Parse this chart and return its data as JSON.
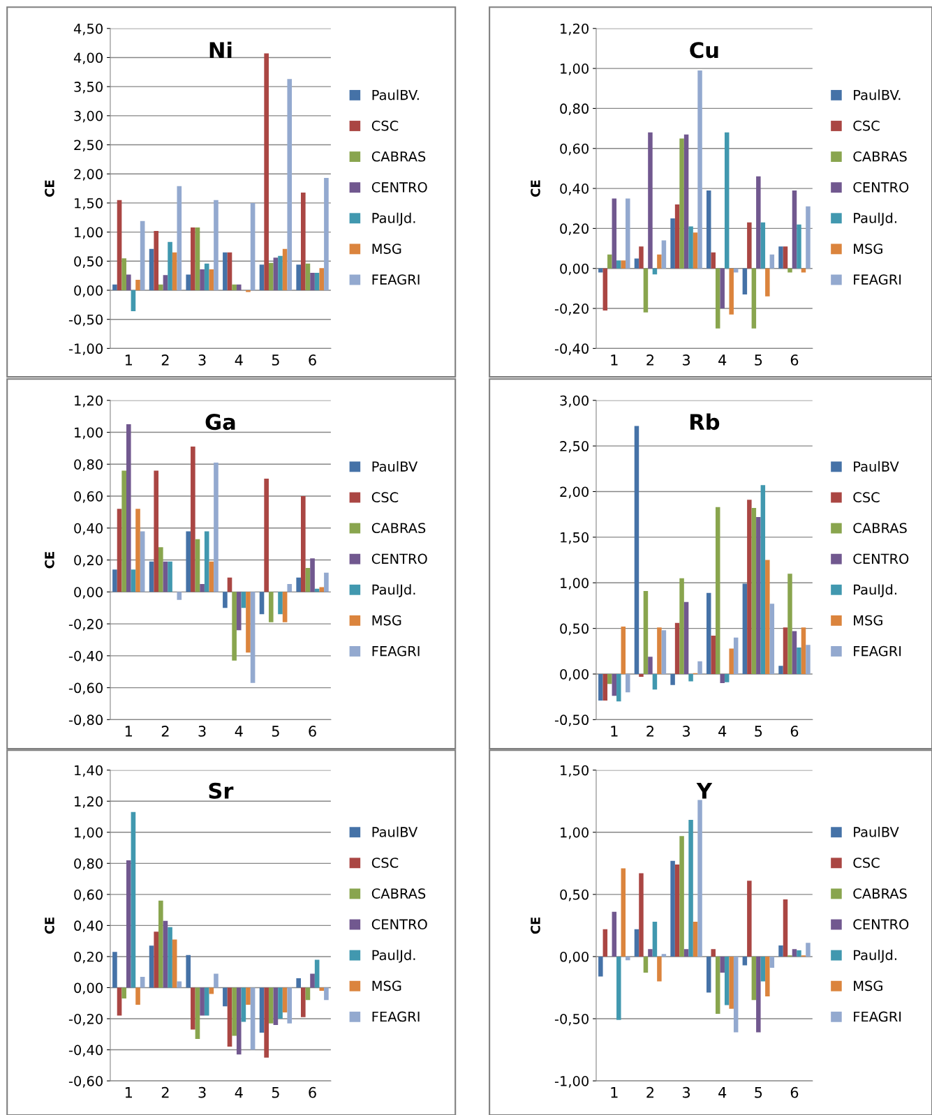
{
  "chart_data": [
    {
      "type": "bar",
      "title": "Ni",
      "ylabel": "CE",
      "categories": [
        "1",
        "2",
        "3",
        "4",
        "5",
        "6"
      ],
      "grid": "y",
      "legend": "right",
      "ylim": [
        -1.0,
        4.5
      ],
      "yticks": [
        {
          "value": -1.0,
          "label": "-1,00"
        },
        {
          "value": -0.5,
          "label": "-0,50"
        },
        {
          "value": 0.0,
          "label": "0,00"
        },
        {
          "value": 0.5,
          "label": "0,50"
        },
        {
          "value": 1.0,
          "label": "1,00"
        },
        {
          "value": 1.5,
          "label": "1,50"
        },
        {
          "value": 2.0,
          "label": "2,00"
        },
        {
          "value": 2.5,
          "label": "2,50"
        },
        {
          "value": 3.0,
          "label": "3,00"
        },
        {
          "value": 3.5,
          "label": "3,50"
        },
        {
          "value": 4.0,
          "label": "4,00"
        },
        {
          "value": 4.5,
          "label": "4,50"
        }
      ],
      "series": [
        {
          "name": "PaulBV.",
          "color": "#4572a7",
          "values": [
            0.1,
            0.71,
            0.27,
            0.65,
            0.44,
            0.44
          ]
        },
        {
          "name": "CSC",
          "color": "#aa4643",
          "values": [
            1.55,
            1.02,
            1.08,
            0.65,
            4.07,
            1.68
          ]
        },
        {
          "name": "CABRAS",
          "color": "#89a54e",
          "values": [
            0.55,
            0.1,
            1.08,
            0.1,
            0.47,
            0.46
          ]
        },
        {
          "name": "CENTRO",
          "color": "#71588f",
          "values": [
            0.27,
            0.26,
            0.36,
            0.1,
            0.56,
            0.3
          ]
        },
        {
          "name": "PaulJd.",
          "color": "#4198af",
          "values": [
            -0.36,
            0.83,
            0.46,
            0.0,
            0.59,
            0.3
          ]
        },
        {
          "name": "MSG",
          "color": "#db843d",
          "values": [
            0.18,
            0.65,
            0.36,
            -0.03,
            0.71,
            0.38
          ]
        },
        {
          "name": "FEAGRI",
          "color": "#93a9cf",
          "values": [
            1.19,
            1.79,
            1.55,
            1.5,
            3.63,
            1.93
          ]
        }
      ]
    },
    {
      "type": "bar",
      "title": "Cu",
      "ylabel": "CE",
      "categories": [
        "1",
        "2",
        "3",
        "4",
        "5",
        "6"
      ],
      "grid": "y",
      "legend": "right",
      "ylim": [
        -0.4,
        1.2
      ],
      "yticks": [
        {
          "value": -0.4,
          "label": "-0,40"
        },
        {
          "value": -0.2,
          "label": "-0,20"
        },
        {
          "value": 0.0,
          "label": "0,00"
        },
        {
          "value": 0.2,
          "label": "0,20"
        },
        {
          "value": 0.4,
          "label": "0,40"
        },
        {
          "value": 0.6,
          "label": "0,60"
        },
        {
          "value": 0.8,
          "label": "0,80"
        },
        {
          "value": 1.0,
          "label": "1,00"
        },
        {
          "value": 1.2,
          "label": "1,20"
        }
      ],
      "series": [
        {
          "name": "PaulBV.",
          "color": "#4572a7",
          "values": [
            -0.02,
            0.05,
            0.25,
            0.39,
            -0.13,
            0.11
          ]
        },
        {
          "name": "CSC",
          "color": "#aa4643",
          "values": [
            -0.21,
            0.11,
            0.32,
            0.08,
            0.23,
            0.11
          ]
        },
        {
          "name": "CABRAS",
          "color": "#89a54e",
          "values": [
            0.07,
            -0.22,
            0.65,
            -0.3,
            -0.3,
            -0.02
          ]
        },
        {
          "name": "CENTRO",
          "color": "#71588f",
          "values": [
            0.35,
            0.68,
            0.67,
            -0.2,
            0.46,
            0.39
          ]
        },
        {
          "name": "PaulJd.",
          "color": "#4198af",
          "values": [
            0.04,
            -0.03,
            0.21,
            0.68,
            0.23,
            0.22
          ]
        },
        {
          "name": "MSG",
          "color": "#db843d",
          "values": [
            0.04,
            0.07,
            0.18,
            -0.23,
            -0.14,
            -0.02
          ]
        },
        {
          "name": "FEAGRI",
          "color": "#93a9cf",
          "values": [
            0.35,
            0.14,
            0.99,
            -0.02,
            0.07,
            0.31
          ]
        }
      ]
    },
    {
      "type": "bar",
      "title": "Ga",
      "ylabel": "CE",
      "categories": [
        "1",
        "2",
        "3",
        "4",
        "5",
        "6"
      ],
      "grid": "y",
      "legend": "right",
      "ylim": [
        -0.8,
        1.2
      ],
      "yticks": [
        {
          "value": -0.8,
          "label": "-0,80"
        },
        {
          "value": -0.6,
          "label": "-0,60"
        },
        {
          "value": -0.4,
          "label": "-0,40"
        },
        {
          "value": -0.2,
          "label": "-0,20"
        },
        {
          "value": 0.0,
          "label": "0,00"
        },
        {
          "value": 0.2,
          "label": "0,20"
        },
        {
          "value": 0.4,
          "label": "0,40"
        },
        {
          "value": 0.6,
          "label": "0,60"
        },
        {
          "value": 0.8,
          "label": "0,80"
        },
        {
          "value": 1.0,
          "label": "1,00"
        },
        {
          "value": 1.2,
          "label": "1,20"
        }
      ],
      "series": [
        {
          "name": "PaulBV",
          "color": "#4572a7",
          "values": [
            0.14,
            0.19,
            0.38,
            -0.1,
            -0.14,
            0.09
          ]
        },
        {
          "name": "CSC",
          "color": "#aa4643",
          "values": [
            0.52,
            0.76,
            0.91,
            0.09,
            0.71,
            0.6
          ]
        },
        {
          "name": "CABRAS",
          "color": "#89a54e",
          "values": [
            0.76,
            0.28,
            0.33,
            -0.43,
            -0.19,
            0.15
          ]
        },
        {
          "name": "CENTRO",
          "color": "#71588f",
          "values": [
            1.05,
            0.19,
            0.05,
            -0.24,
            0.0,
            0.21
          ]
        },
        {
          "name": "PaulJd.",
          "color": "#4198af",
          "values": [
            0.14,
            0.19,
            0.38,
            -0.1,
            -0.14,
            0.02
          ]
        },
        {
          "name": "MSG",
          "color": "#db843d",
          "values": [
            0.52,
            0.0,
            0.19,
            -0.38,
            -0.19,
            0.03
          ]
        },
        {
          "name": "FEAGRI",
          "color": "#93a9cf",
          "values": [
            0.38,
            -0.05,
            0.81,
            -0.57,
            0.05,
            0.12
          ]
        }
      ]
    },
    {
      "type": "bar",
      "title": "Rb",
      "ylabel": null,
      "categories": [
        "1",
        "2",
        "3",
        "4",
        "5",
        "6"
      ],
      "grid": "y",
      "legend": "right",
      "ylim": [
        -0.5,
        3.0
      ],
      "yticks": [
        {
          "value": -0.5,
          "label": "-0,50"
        },
        {
          "value": 0.0,
          "label": "0,00"
        },
        {
          "value": 0.5,
          "label": "0,50"
        },
        {
          "value": 1.0,
          "label": "1,00"
        },
        {
          "value": 1.5,
          "label": "1,50"
        },
        {
          "value": 2.0,
          "label": "2,00"
        },
        {
          "value": 2.5,
          "label": "2,50"
        },
        {
          "value": 3.0,
          "label": "3,00"
        }
      ],
      "series": [
        {
          "name": "PaulBV",
          "color": "#4572a7",
          "values": [
            -0.29,
            2.72,
            -0.12,
            0.89,
            0.99,
            0.09
          ]
        },
        {
          "name": "CSC",
          "color": "#aa4643",
          "values": [
            -0.29,
            -0.03,
            0.56,
            0.42,
            1.91,
            0.51
          ]
        },
        {
          "name": "CABRAS",
          "color": "#89a54e",
          "values": [
            -0.11,
            0.91,
            1.05,
            1.83,
            1.82,
            1.1
          ]
        },
        {
          "name": "CENTRO",
          "color": "#71588f",
          "values": [
            -0.24,
            0.19,
            0.79,
            -0.1,
            1.72,
            0.47
          ]
        },
        {
          "name": "PaulJd.",
          "color": "#4198af",
          "values": [
            -0.3,
            -0.17,
            -0.08,
            -0.09,
            2.07,
            0.29
          ]
        },
        {
          "name": "MSG",
          "color": "#db843d",
          "values": [
            0.52,
            0.51,
            0.01,
            0.28,
            1.25,
            0.51
          ]
        },
        {
          "name": "FEAGRI",
          "color": "#93a9cf",
          "values": [
            -0.2,
            0.48,
            0.14,
            0.4,
            0.77,
            0.32
          ]
        }
      ]
    },
    {
      "type": "bar",
      "title": "Sr",
      "ylabel": "CE",
      "categories": [
        "1",
        "2",
        "3",
        "4",
        "5",
        "6"
      ],
      "grid": "y",
      "legend": "right",
      "ylim": [
        -0.6,
        1.4
      ],
      "yticks": [
        {
          "value": -0.6,
          "label": "-0,60"
        },
        {
          "value": -0.4,
          "label": "-0,40"
        },
        {
          "value": -0.2,
          "label": "-0,20"
        },
        {
          "value": 0.0,
          "label": "0,00"
        },
        {
          "value": 0.2,
          "label": "0,20"
        },
        {
          "value": 0.4,
          "label": "0,40"
        },
        {
          "value": 0.6,
          "label": "0,60"
        },
        {
          "value": 0.8,
          "label": "0,80"
        },
        {
          "value": 1.0,
          "label": "1,00"
        },
        {
          "value": 1.2,
          "label": "1,20"
        },
        {
          "value": 1.4,
          "label": "1,40"
        }
      ],
      "series": [
        {
          "name": "PaulBV",
          "color": "#4572a7",
          "values": [
            0.23,
            0.27,
            0.21,
            -0.12,
            -0.29,
            0.06
          ]
        },
        {
          "name": "CSC",
          "color": "#aa4643",
          "values": [
            -0.18,
            0.36,
            -0.27,
            -0.38,
            -0.45,
            -0.19
          ]
        },
        {
          "name": "CABRAS",
          "color": "#89a54e",
          "values": [
            -0.07,
            0.56,
            -0.33,
            -0.31,
            -0.23,
            -0.08
          ]
        },
        {
          "name": "CENTRO",
          "color": "#71588f",
          "values": [
            0.82,
            0.43,
            -0.18,
            -0.43,
            -0.24,
            0.09
          ]
        },
        {
          "name": "PaulJd.",
          "color": "#4198af",
          "values": [
            1.13,
            0.39,
            -0.18,
            -0.22,
            -0.2,
            0.18
          ]
        },
        {
          "name": "MSG",
          "color": "#db843d",
          "values": [
            -0.11,
            0.31,
            -0.04,
            -0.11,
            -0.16,
            -0.02
          ]
        },
        {
          "name": "FEAGRI",
          "color": "#93a9cf",
          "values": [
            0.07,
            0.04,
            0.09,
            -0.4,
            -0.23,
            -0.08
          ]
        }
      ]
    },
    {
      "type": "bar",
      "title": "Y",
      "ylabel": "CE",
      "categories": [
        "1",
        "2",
        "3",
        "4",
        "5",
        "6"
      ],
      "grid": "y",
      "legend": "right",
      "ylim": [
        -1.0,
        1.5
      ],
      "yticks": [
        {
          "value": -1.0,
          "label": "-1,00"
        },
        {
          "value": -0.5,
          "label": "-0,50"
        },
        {
          "value": 0.0,
          "label": "0,00"
        },
        {
          "value": 0.5,
          "label": "0,50"
        },
        {
          "value": 1.0,
          "label": "1,00"
        },
        {
          "value": 1.5,
          "label": "1,50"
        }
      ],
      "series": [
        {
          "name": "PaulBV",
          "color": "#4572a7",
          "values": [
            -0.16,
            0.22,
            0.77,
            -0.29,
            -0.07,
            0.09
          ]
        },
        {
          "name": "CSC",
          "color": "#aa4643",
          "values": [
            0.22,
            0.67,
            0.74,
            0.06,
            0.61,
            0.46
          ]
        },
        {
          "name": "CABRAS",
          "color": "#89a54e",
          "values": [
            0.0,
            -0.13,
            0.97,
            -0.46,
            -0.35,
            0.01
          ]
        },
        {
          "name": "CENTRO",
          "color": "#71588f",
          "values": [
            0.36,
            0.06,
            0.06,
            -0.13,
            -0.61,
            0.06
          ]
        },
        {
          "name": "PaulJd.",
          "color": "#4198af",
          "values": [
            -0.51,
            0.28,
            1.1,
            -0.39,
            -0.2,
            0.05
          ]
        },
        {
          "name": "MSG",
          "color": "#db843d",
          "values": [
            0.71,
            -0.2,
            0.28,
            -0.42,
            -0.32,
            0.01
          ]
        },
        {
          "name": "FEAGRI",
          "color": "#93a9cf",
          "values": [
            -0.03,
            0.02,
            1.26,
            -0.61,
            -0.09,
            0.11
          ]
        }
      ]
    }
  ]
}
